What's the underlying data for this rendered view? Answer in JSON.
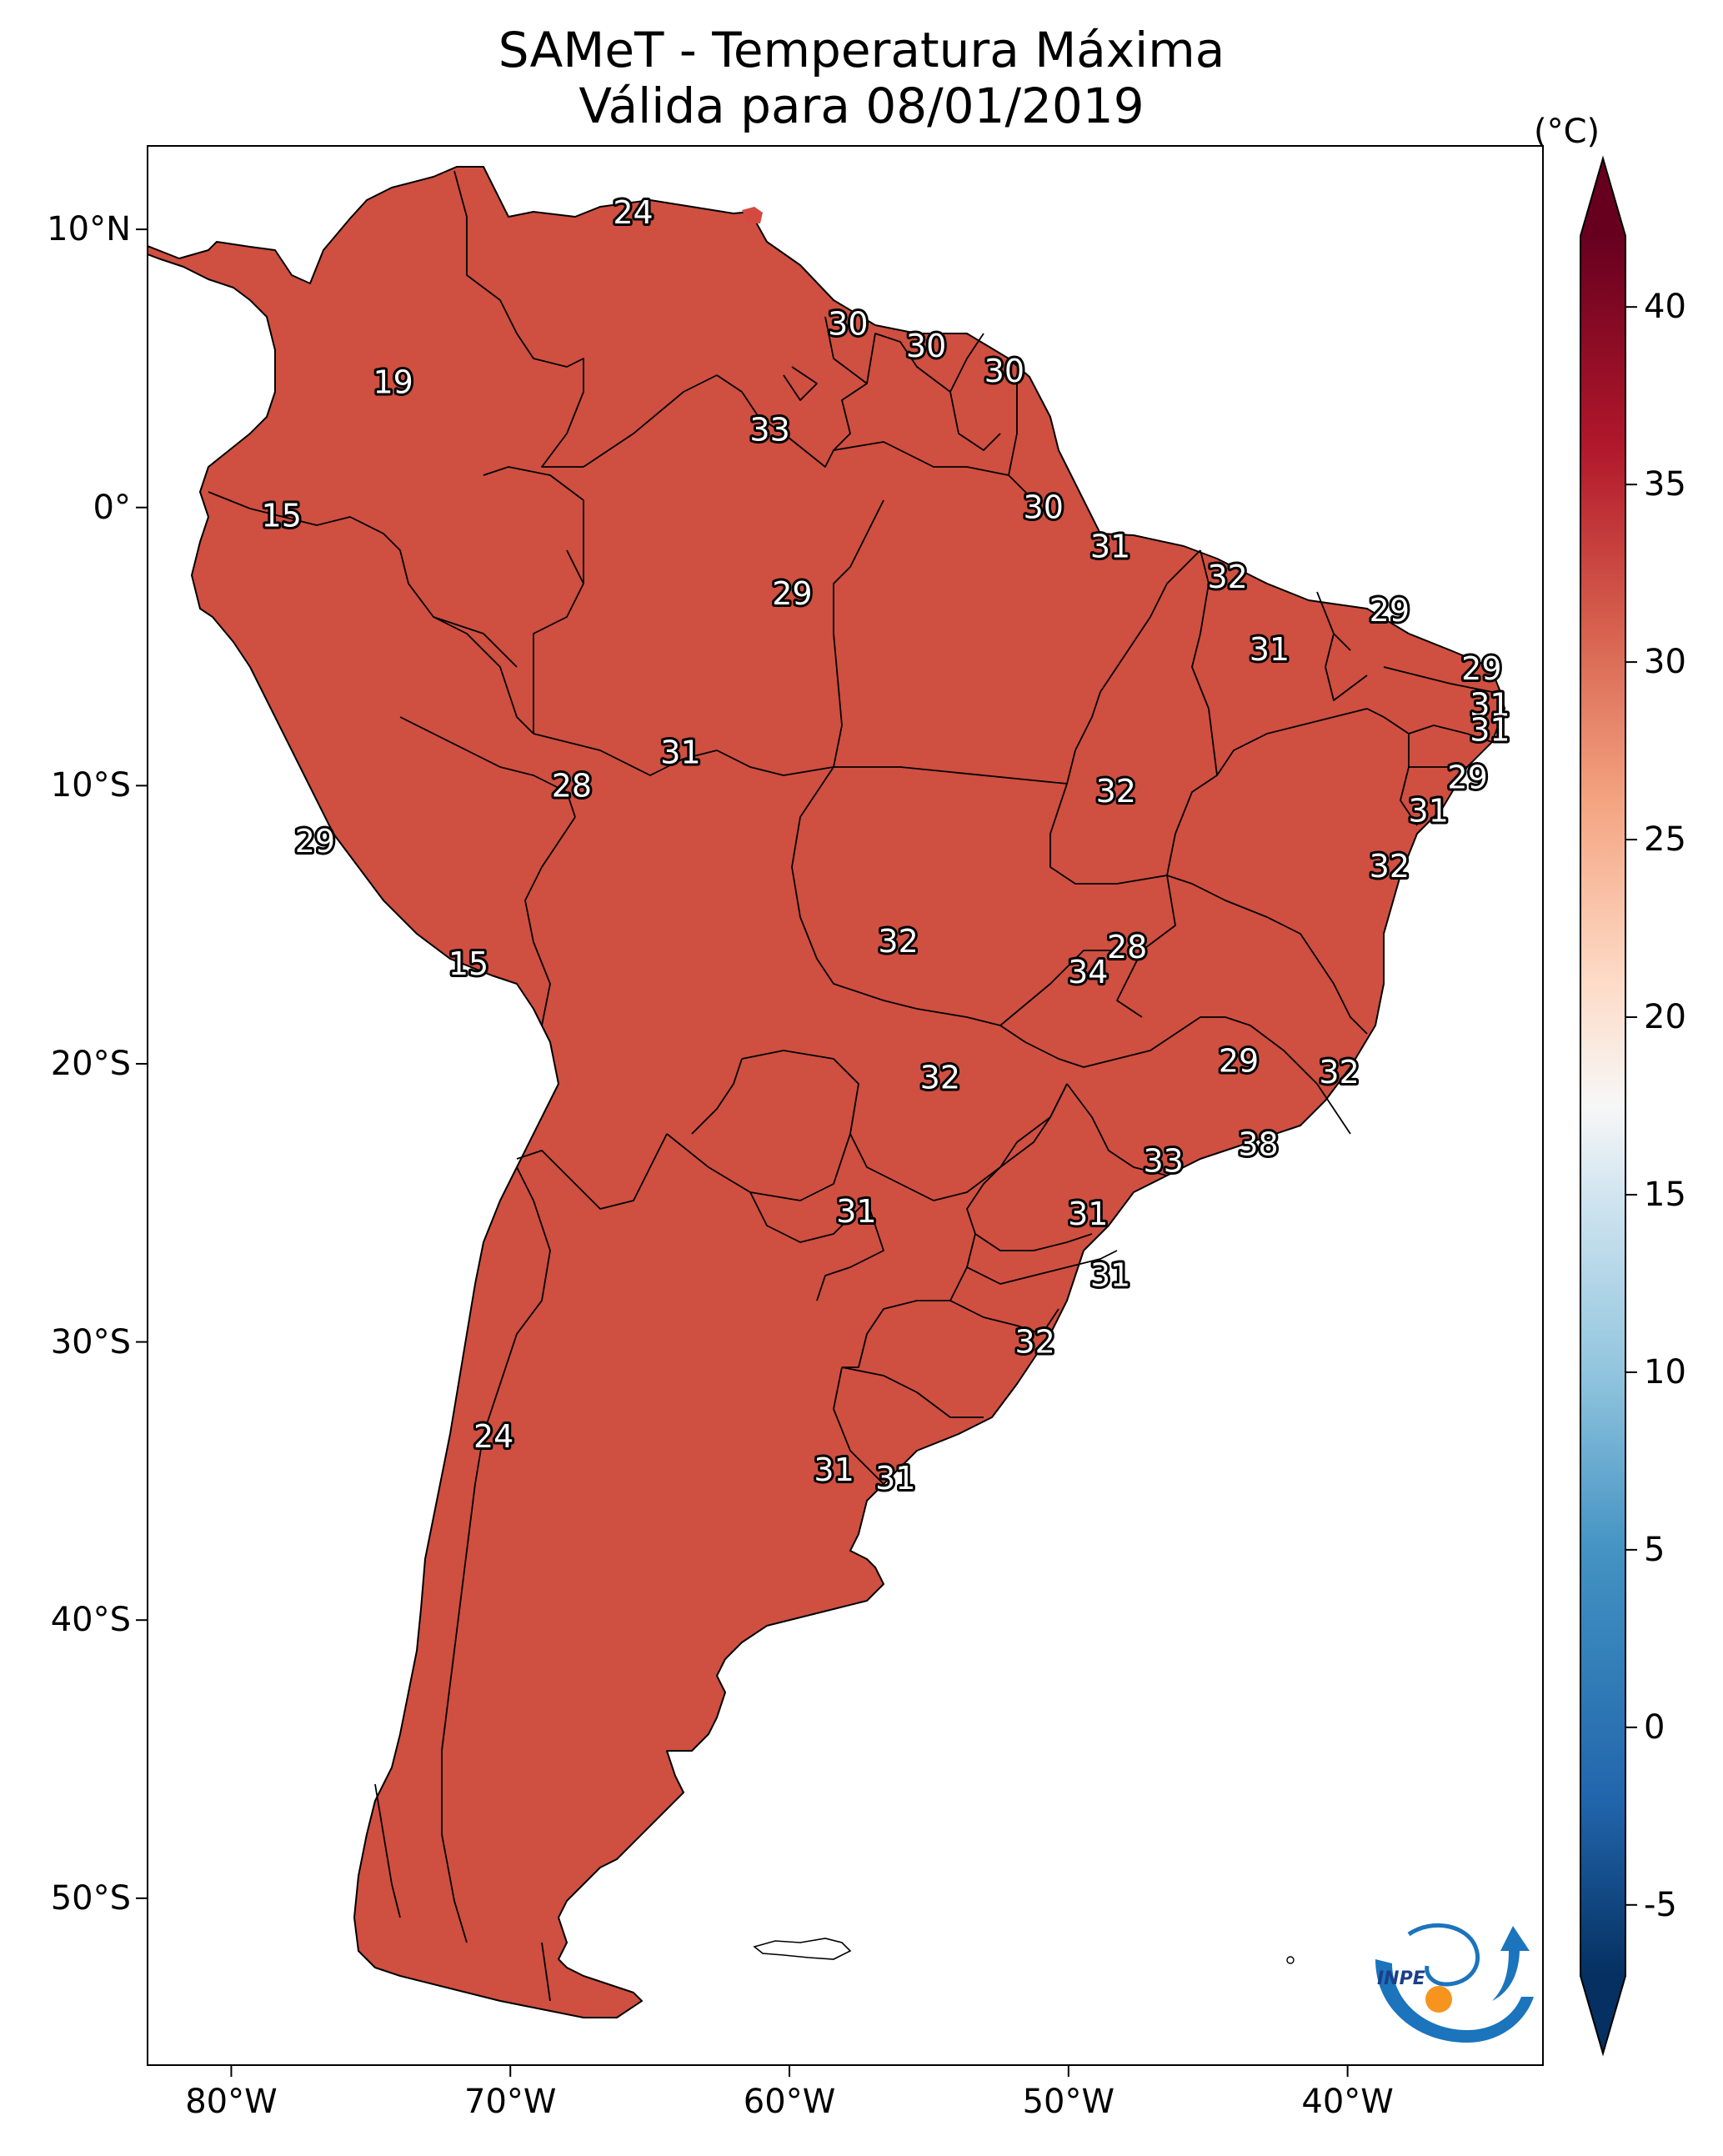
{
  "title": {
    "line1": "SAMeT - Temperatura Máxima",
    "line2": "Válida para 08/01/2019"
  },
  "map": {
    "lon_range": [
      -83,
      -33
    ],
    "lat_range": [
      -56,
      13
    ],
    "x_ticks": [
      {
        "lon": -80,
        "label": "80°W"
      },
      {
        "lon": -70,
        "label": "70°W"
      },
      {
        "lon": -60,
        "label": "60°W"
      },
      {
        "lon": -50,
        "label": "50°W"
      },
      {
        "lon": -40,
        "label": "40°W"
      }
    ],
    "y_ticks": [
      {
        "lat": 10,
        "label": "10°N"
      },
      {
        "lat": 0,
        "label": "0°"
      },
      {
        "lat": -10,
        "label": "10°S"
      },
      {
        "lat": -20,
        "label": "20°S"
      },
      {
        "lat": -30,
        "label": "30°S"
      },
      {
        "lat": -40,
        "label": "40°S"
      },
      {
        "lat": -50,
        "label": "50°S"
      }
    ],
    "point_labels": [
      {
        "lon": -65.6,
        "lat": 10.6,
        "value": "24"
      },
      {
        "lon": -74.2,
        "lat": 4.5,
        "value": "19"
      },
      {
        "lon": -57.9,
        "lat": 6.6,
        "value": "30"
      },
      {
        "lon": -55.1,
        "lat": 5.8,
        "value": "30"
      },
      {
        "lon": -52.3,
        "lat": 4.9,
        "value": "30"
      },
      {
        "lon": -60.7,
        "lat": 2.8,
        "value": "33"
      },
      {
        "lon": -78.2,
        "lat": -0.3,
        "value": "15"
      },
      {
        "lon": -50.9,
        "lat": 0.0,
        "value": "30"
      },
      {
        "lon": -48.5,
        "lat": -1.4,
        "value": "31"
      },
      {
        "lon": -59.9,
        "lat": -3.1,
        "value": "29"
      },
      {
        "lon": -44.3,
        "lat": -2.5,
        "value": "32"
      },
      {
        "lon": -38.5,
        "lat": -3.7,
        "value": "29"
      },
      {
        "lon": -42.8,
        "lat": -5.1,
        "value": "31"
      },
      {
        "lon": -35.2,
        "lat": -5.8,
        "value": "29"
      },
      {
        "lon": -34.9,
        "lat": -7.1,
        "value": "31"
      },
      {
        "lon": -34.9,
        "lat": -8.0,
        "value": "31"
      },
      {
        "lon": -63.9,
        "lat": -8.8,
        "value": "31"
      },
      {
        "lon": -35.7,
        "lat": -9.7,
        "value": "29"
      },
      {
        "lon": -67.8,
        "lat": -10.0,
        "value": "28"
      },
      {
        "lon": -48.3,
        "lat": -10.2,
        "value": "32"
      },
      {
        "lon": -37.1,
        "lat": -10.9,
        "value": "31"
      },
      {
        "lon": -77.0,
        "lat": -12.0,
        "value": "29"
      },
      {
        "lon": -38.5,
        "lat": -12.9,
        "value": "32"
      },
      {
        "lon": -56.1,
        "lat": -15.6,
        "value": "32"
      },
      {
        "lon": -47.9,
        "lat": -15.8,
        "value": "28"
      },
      {
        "lon": -49.3,
        "lat": -16.7,
        "value": "34"
      },
      {
        "lon": -71.5,
        "lat": -16.4,
        "value": "15"
      },
      {
        "lon": -43.9,
        "lat": -19.9,
        "value": "29"
      },
      {
        "lon": -40.3,
        "lat": -20.3,
        "value": "32"
      },
      {
        "lon": -54.6,
        "lat": -20.5,
        "value": "32"
      },
      {
        "lon": -43.2,
        "lat": -22.9,
        "value": "38"
      },
      {
        "lon": -46.6,
        "lat": -23.5,
        "value": "33"
      },
      {
        "lon": -57.6,
        "lat": -25.3,
        "value": "31"
      },
      {
        "lon": -49.3,
        "lat": -25.4,
        "value": "31"
      },
      {
        "lon": -48.5,
        "lat": -27.6,
        "value": "31"
      },
      {
        "lon": -51.2,
        "lat": -30.0,
        "value": "32"
      },
      {
        "lon": -70.6,
        "lat": -33.4,
        "value": "24"
      },
      {
        "lon": -58.4,
        "lat": -34.6,
        "value": "31"
      },
      {
        "lon": -56.2,
        "lat": -34.9,
        "value": "31"
      }
    ]
  },
  "colorbar": {
    "unit_label": "(°C)",
    "min": -7,
    "max": 42,
    "tick_values": [
      -5,
      0,
      5,
      10,
      15,
      20,
      25,
      30,
      35,
      40
    ],
    "tick_labels": [
      "-5",
      "0",
      "5",
      "10",
      "15",
      "20",
      "25",
      "30",
      "35",
      "40"
    ],
    "stops": [
      {
        "value": -7,
        "color": "#053061"
      },
      {
        "value": -2,
        "color": "#2166ac"
      },
      {
        "value": 5,
        "color": "#4393c3"
      },
      {
        "value": 10,
        "color": "#92c5de"
      },
      {
        "value": 15,
        "color": "#d1e5f0"
      },
      {
        "value": 17.5,
        "color": "#f7f7f7"
      },
      {
        "value": 21,
        "color": "#fddbc7"
      },
      {
        "value": 26,
        "color": "#f4a582"
      },
      {
        "value": 31,
        "color": "#d6604d"
      },
      {
        "value": 36,
        "color": "#b2182b"
      },
      {
        "value": 42,
        "color": "#67001f"
      }
    ]
  },
  "logo": {
    "text": "INPE",
    "colors": {
      "blue": "#1b74bc",
      "orange": "#f7941d"
    }
  },
  "colors": {
    "land_warm": "#cf4f40",
    "land_hot": "#b42a2e",
    "land_very_hot": "#8e1024",
    "land_mild": "#e8937a",
    "land_cool": "#f5dcd2",
    "land_cold": "#cfe3ef",
    "land_colder": "#9fc8e1",
    "border": "#000000"
  }
}
